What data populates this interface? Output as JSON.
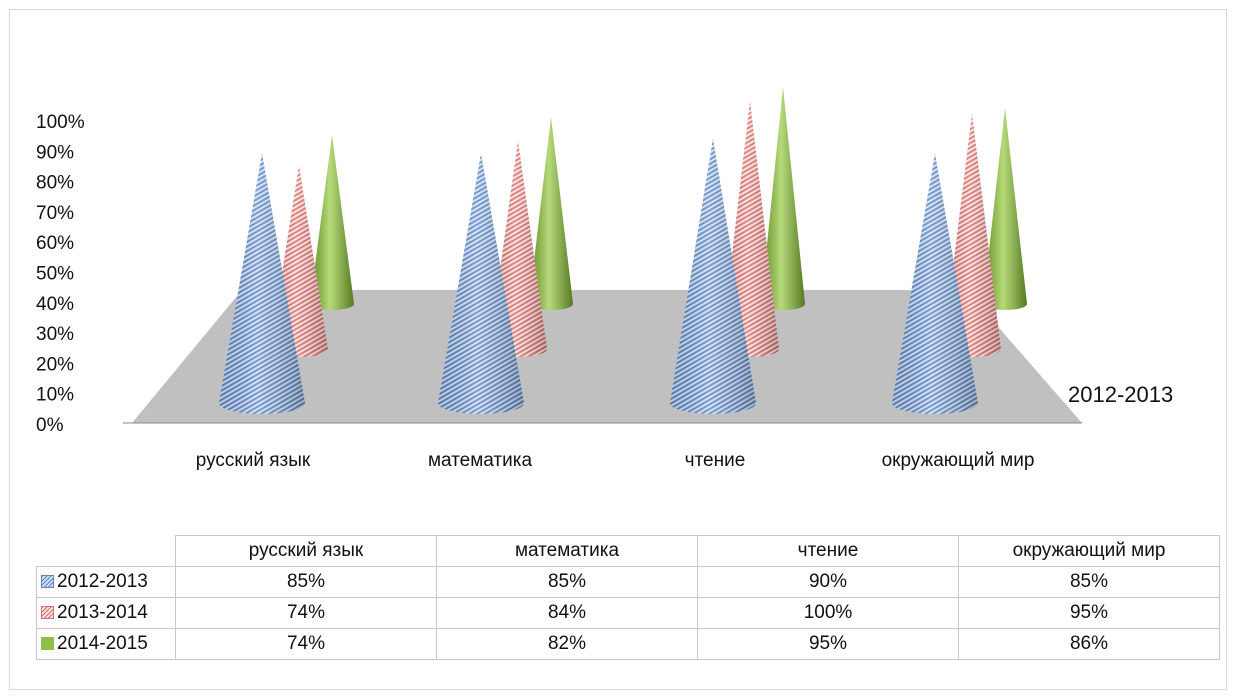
{
  "chart_data": {
    "type": "bar",
    "subtype": "3d-cone",
    "categories": [
      "русский язык",
      "математика",
      "чтение",
      "окружающий мир"
    ],
    "series": [
      {
        "name": "2012-2013",
        "values": [
          85,
          85,
          90,
          85
        ],
        "color": "#a9c4ea",
        "pattern": "diagonal-hatch"
      },
      {
        "name": "2013-2014",
        "values": [
          74,
          84,
          100,
          95
        ],
        "color": "#f2b6b4",
        "pattern": "diagonal-hatch"
      },
      {
        "name": "2014-2015",
        "values": [
          74,
          82,
          95,
          86
        ],
        "color": "#8fbf46",
        "pattern": "solid"
      }
    ],
    "yticks": [
      "0%",
      "10%",
      "20%",
      "30%",
      "40%",
      "50%",
      "60%",
      "70%",
      "80%",
      "90%",
      "100%"
    ],
    "ylim": [
      0,
      100
    ],
    "depth_axis_label": "2012-2013",
    "floor_color": "#c0c0c0",
    "legend": "data-table-below"
  },
  "table": {
    "headers": [
      "русский язык",
      "математика",
      "чтение",
      "окружающий мир"
    ],
    "rows": [
      {
        "name": "2012-2013",
        "values": [
          "85%",
          "85%",
          "90%",
          "85%"
        ]
      },
      {
        "name": "2013-2014",
        "values": [
          "74%",
          "84%",
          "100%",
          "95%"
        ]
      },
      {
        "name": "2014-2015",
        "values": [
          "74%",
          "82%",
          "95%",
          "86%"
        ]
      }
    ]
  }
}
